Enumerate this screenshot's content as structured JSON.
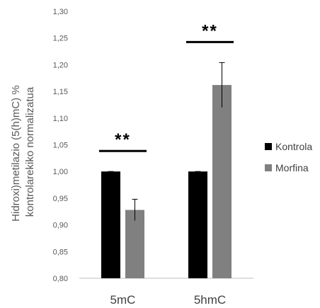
{
  "chart_data": {
    "type": "bar",
    "title": "",
    "ylabel_lines": [
      "Hidroxi)metilazio (5(h)mC) %",
      "kontrolarekiko normalizatua"
    ],
    "xlabel": "",
    "categories": [
      "5mC",
      "5hmC"
    ],
    "series": [
      {
        "name": "Kontrola",
        "values": [
          1.0,
          1.0
        ],
        "errors": [
          0.0,
          0.0
        ],
        "color": "#000000"
      },
      {
        "name": "Morfina",
        "values": [
          0.928,
          1.162
        ],
        "errors": [
          0.02,
          0.042
        ],
        "color": "#808080"
      }
    ],
    "ylim": [
      0.8,
      1.3
    ],
    "yticks": [
      "0,80",
      "0,85",
      "0,90",
      "0,95",
      "1,00",
      "1,05",
      "1,10",
      "1,15",
      "1,20",
      "1,25",
      "1,30"
    ],
    "significance": [
      {
        "category": "5mC",
        "label": "**"
      },
      {
        "category": "5hmC",
        "label": "**"
      }
    ],
    "legend_position": "right",
    "grid": false
  }
}
